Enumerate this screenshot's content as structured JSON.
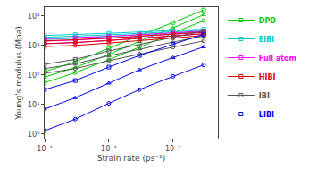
{
  "chart_data": {
    "type": "line",
    "xlabel": "Strain rate (ps⁻¹)",
    "ylabel": "Young's modulus (Mpa)",
    "log": true,
    "grid": false,
    "legend": "right",
    "xlim": [
      0.0001,
      0.05
    ],
    "ylim": [
      0.7,
      20000
    ],
    "xticks": [
      {
        "value": 0.0001,
        "label": "10⁻⁴"
      },
      {
        "value": 0.001,
        "label": "10⁻³"
      },
      {
        "value": 0.01,
        "label": "10⁻²"
      }
    ],
    "yticks": [
      {
        "value": 1,
        "label": "10⁰"
      },
      {
        "value": 10,
        "label": "10¹"
      },
      {
        "value": 100,
        "label": "10²"
      },
      {
        "value": 1000,
        "label": "10³"
      },
      {
        "value": 10000,
        "label": "10⁴"
      }
    ],
    "x": [
      0.0001,
      0.0003,
      0.001,
      0.003,
      0.01,
      0.03
    ],
    "series": [
      {
        "name": "DPD",
        "color": "#00cc00",
        "marker": "square",
        "values": [
          130,
          280,
          800,
          2200,
          6000,
          16000
        ]
      },
      {
        "name": "DPD",
        "color": "#00cc00",
        "marker": "triangle",
        "values": [
          85,
          180,
          500,
          1400,
          4000,
          11000
        ]
      },
      {
        "name": "DPD",
        "color": "#00cc00",
        "marker": "circle",
        "values": [
          55,
          120,
          330,
          900,
          2600,
          7000
        ]
      },
      {
        "name": "ElBI",
        "color": "#00cccc",
        "marker": "square",
        "values": [
          2200,
          2350,
          2600,
          2900,
          3200,
          3600
        ]
      },
      {
        "name": "ElBI",
        "color": "#00cccc",
        "marker": "triangle",
        "values": [
          1900,
          2050,
          2300,
          2600,
          2900,
          3300
        ]
      },
      {
        "name": "ElBI",
        "color": "#00cccc",
        "marker": "circle",
        "values": [
          1600,
          1750,
          2000,
          2300,
          2600,
          3000
        ]
      },
      {
        "name": "Full atom",
        "color": "#ff00ff",
        "marker": "square",
        "values": [
          1700,
          1820,
          2050,
          2350,
          2700,
          3100
        ]
      },
      {
        "name": "Full atom",
        "color": "#ff00ff",
        "marker": "triangle",
        "values": [
          1400,
          1520,
          1750,
          2050,
          2400,
          2800
        ]
      },
      {
        "name": "Full atom",
        "color": "#ff00ff",
        "marker": "circle",
        "values": [
          1150,
          1260,
          1480,
          1760,
          2100,
          2500
        ]
      },
      {
        "name": "HIBI",
        "color": "#dd0000",
        "marker": "square",
        "values": [
          1450,
          1560,
          1790,
          2070,
          2420,
          2850
        ]
      },
      {
        "name": "HIBI",
        "color": "#dd0000",
        "marker": "triangle",
        "values": [
          1150,
          1260,
          1480,
          1760,
          2100,
          2500
        ]
      },
      {
        "name": "HIBI",
        "color": "#dd0000",
        "marker": "circle",
        "values": [
          920,
          1010,
          1210,
          1470,
          1790,
          2180
        ]
      },
      {
        "name": "IBI",
        "color": "#555555",
        "marker": "square",
        "values": [
          230,
          340,
          650,
          1100,
          1900,
          3100
        ]
      },
      {
        "name": "IBI",
        "color": "#555555",
        "marker": "triangle",
        "values": [
          165,
          240,
          450,
          760,
          1300,
          2100
        ]
      },
      {
        "name": "IBI",
        "color": "#555555",
        "marker": "circle",
        "values": [
          115,
          165,
          305,
          515,
          880,
          1430
        ]
      },
      {
        "name": "LIBI",
        "color": "#0000ee",
        "marker": "square",
        "values": [
          32,
          65,
          185,
          460,
          1100,
          2400
        ]
      },
      {
        "name": "LIBI",
        "color": "#0000ee",
        "marker": "triangle",
        "values": [
          7,
          17,
          53,
          150,
          390,
          900
        ]
      },
      {
        "name": "LIBI",
        "color": "#0000ee",
        "marker": "circle",
        "values": [
          1.3,
          3.2,
          11,
          32,
          90,
          220
        ]
      }
    ]
  }
}
